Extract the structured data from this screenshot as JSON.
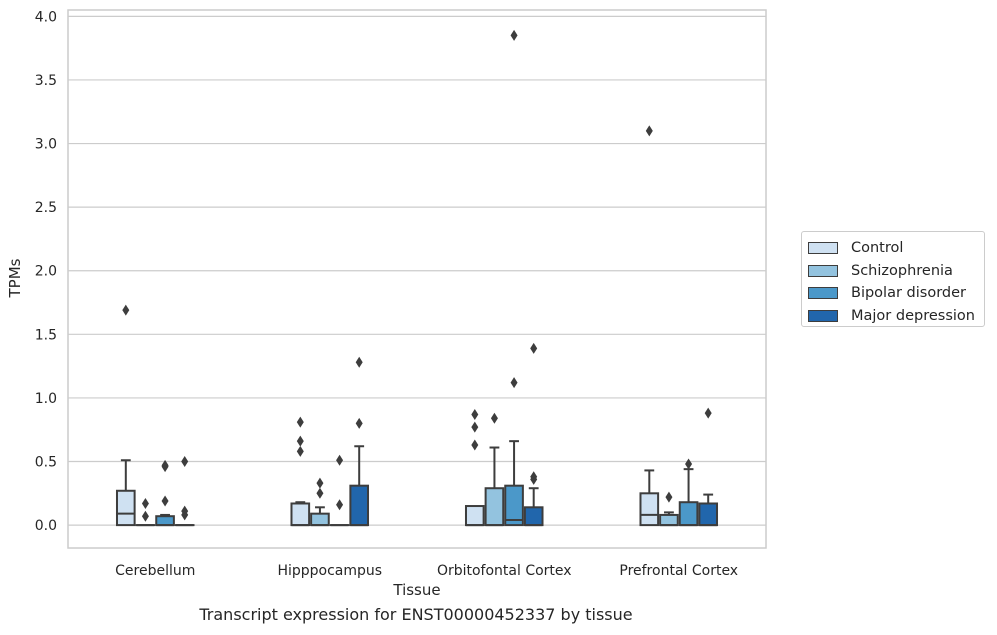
{
  "chart_data": {
    "type": "box",
    "title": "Transcript expression for ENST00000452337 by tissue",
    "xlabel": "Tissue",
    "ylabel": "TPMs",
    "ylim": [
      -0.18,
      4.05
    ],
    "yticks": [
      0.0,
      0.5,
      1.0,
      1.5,
      2.0,
      2.5,
      3.0,
      3.5,
      4.0
    ],
    "ytick_labels": [
      "0.0",
      "0.5",
      "1.0",
      "1.5",
      "2.0",
      "2.5",
      "3.0",
      "3.5",
      "4.0"
    ],
    "grid": true,
    "legend_position": "right",
    "categories": [
      "Cerebellum",
      "Hipppocampus",
      "Orbitofontal Cortex",
      "Prefrontal Cortex"
    ],
    "series": [
      {
        "name": "Control",
        "color": "#cfe1f2",
        "boxes": [
          {
            "q1": 0.0,
            "median": 0.09,
            "q3": 0.27,
            "whisker_low": 0.0,
            "whisker_high": 0.51,
            "outliers": [
              1.69
            ]
          },
          {
            "q1": 0.0,
            "median": 0.0,
            "q3": 0.17,
            "whisker_low": 0.0,
            "whisker_high": 0.18,
            "outliers": [
              0.58,
              0.66,
              0.81
            ]
          },
          {
            "q1": 0.0,
            "median": 0.0,
            "q3": 0.15,
            "whisker_low": 0.0,
            "whisker_high": 0.15,
            "outliers": [
              0.63,
              0.77,
              0.87
            ]
          },
          {
            "q1": 0.0,
            "median": 0.08,
            "q3": 0.25,
            "whisker_low": 0.0,
            "whisker_high": 0.43,
            "outliers": [
              3.1
            ]
          }
        ]
      },
      {
        "name": "Schizophrenia",
        "color": "#93c3df",
        "boxes": [
          {
            "q1": 0.0,
            "median": 0.0,
            "q3": 0.0,
            "whisker_low": 0.0,
            "whisker_high": 0.0,
            "outliers": [
              0.07,
              0.17
            ]
          },
          {
            "q1": 0.0,
            "median": 0.0,
            "q3": 0.09,
            "whisker_low": 0.0,
            "whisker_high": 0.14,
            "outliers": [
              0.25,
              0.33
            ]
          },
          {
            "q1": 0.0,
            "median": 0.0,
            "q3": 0.29,
            "whisker_low": 0.0,
            "whisker_high": 0.61,
            "outliers": [
              0.84
            ]
          },
          {
            "q1": 0.0,
            "median": 0.0,
            "q3": 0.08,
            "whisker_low": 0.0,
            "whisker_high": 0.1,
            "outliers": [
              0.22
            ]
          }
        ]
      },
      {
        "name": "Bipolar disorder",
        "color": "#4b98c9",
        "boxes": [
          {
            "q1": 0.0,
            "median": 0.0,
            "q3": 0.07,
            "whisker_low": 0.0,
            "whisker_high": 0.08,
            "outliers": [
              0.19,
              0.46,
              0.47
            ]
          },
          {
            "q1": 0.0,
            "median": 0.0,
            "q3": 0.0,
            "whisker_low": 0.0,
            "whisker_high": 0.0,
            "outliers": [
              0.16,
              0.51
            ]
          },
          {
            "q1": 0.0,
            "median": 0.04,
            "q3": 0.31,
            "whisker_low": 0.0,
            "whisker_high": 0.66,
            "outliers": [
              1.12,
              3.85
            ]
          },
          {
            "q1": 0.0,
            "median": 0.0,
            "q3": 0.18,
            "whisker_low": 0.0,
            "whisker_high": 0.44,
            "outliers": [
              0.48
            ]
          }
        ]
      },
      {
        "name": "Major depression",
        "color": "#2166ac",
        "boxes": [
          {
            "q1": 0.0,
            "median": 0.0,
            "q3": 0.0,
            "whisker_low": 0.0,
            "whisker_high": 0.0,
            "outliers": [
              0.08,
              0.11,
              0.5
            ]
          },
          {
            "q1": 0.0,
            "median": 0.0,
            "q3": 0.31,
            "whisker_low": 0.0,
            "whisker_high": 0.62,
            "outliers": [
              0.8,
              1.28
            ]
          },
          {
            "q1": 0.0,
            "median": 0.0,
            "q3": 0.14,
            "whisker_low": 0.0,
            "whisker_high": 0.29,
            "outliers": [
              0.36,
              0.38,
              1.39
            ]
          },
          {
            "q1": 0.0,
            "median": 0.0,
            "q3": 0.17,
            "whisker_low": 0.0,
            "whisker_high": 0.24,
            "outliers": [
              0.88
            ]
          }
        ]
      }
    ]
  }
}
